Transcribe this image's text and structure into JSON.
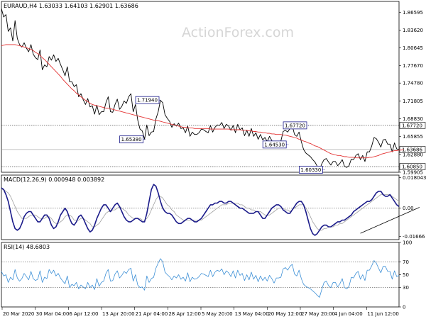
{
  "watermark": "ActionForex.com",
  "colors": {
    "price": "#000000",
    "ma": "#e33131",
    "macd": "#1b1b8a",
    "signal": "#a0a0a0",
    "rsi": "#3c8fd6",
    "grid": "#9a9a9a"
  },
  "chart_data": [
    {
      "type": "line",
      "title": "EURAUD,H4  1.63033 1.64103 1.62901 1.63686",
      "ylim": [
        1.599,
        1.884
      ],
      "y_ticks": [
        "1.86595",
        "1.83620",
        "1.80645",
        "1.77670",
        "1.74780",
        "1.71805",
        "1.68830",
        "1.65855",
        "1.62880",
        "1.59905"
      ],
      "reference_levels": [
        {
          "value": 1.6772,
          "label": "1.67720",
          "style": "dotted"
        },
        {
          "value": 1.6085,
          "label": "1.60850",
          "style": "dotted"
        }
      ],
      "last_price": {
        "value": 1.63686,
        "label": "1.63686"
      },
      "annotations": [
        {
          "label": "1.71940",
          "x": 70,
          "y": 1.7194
        },
        {
          "label": "1.65380",
          "x": 63,
          "y": 1.6538
        },
        {
          "label": "1.67720",
          "x": 135,
          "y": 1.6772
        },
        {
          "label": "1.64530",
          "x": 126,
          "y": 1.6453
        },
        {
          "label": "1.60330",
          "x": 142,
          "y": 1.6033
        }
      ],
      "series": [
        {
          "name": "",
          "values": [
            1.872,
            1.858,
            1.862,
            1.834,
            1.84,
            1.818,
            1.852,
            1.822,
            1.812,
            1.808,
            1.815,
            1.806,
            1.8,
            1.812,
            1.796,
            1.79,
            1.787,
            1.803,
            1.77,
            1.778,
            1.775,
            1.792,
            1.786,
            1.795,
            1.784,
            1.789,
            1.779,
            1.77,
            1.76,
            1.775,
            1.75,
            1.75,
            1.742,
            1.745,
            1.725,
            1.73,
            1.72,
            1.712,
            1.722,
            1.708,
            1.71,
            1.696,
            1.711,
            1.695,
            1.7,
            1.7,
            1.715,
            1.725,
            1.7,
            1.699,
            1.712,
            1.721,
            1.704,
            1.709,
            1.718,
            1.714,
            1.725,
            1.73,
            1.7,
            1.712,
            1.686,
            1.671,
            1.668,
            1.654,
            1.678,
            1.66,
            1.666,
            1.667,
            1.688,
            1.7,
            1.719,
            1.715,
            1.695,
            1.689,
            1.684,
            1.674,
            1.68,
            1.676,
            1.681,
            1.672,
            1.673,
            1.665,
            1.676,
            1.659,
            1.666,
            1.662,
            1.662,
            1.665,
            1.671,
            1.67,
            1.667,
            1.665,
            1.677,
            1.666,
            1.674,
            1.678,
            1.677,
            1.682,
            1.672,
            1.679,
            1.676,
            1.669,
            1.677,
            1.665,
            1.679,
            1.67,
            1.673,
            1.66,
            1.669,
            1.659,
            1.672,
            1.659,
            1.665,
            1.654,
            1.662,
            1.653,
            1.657,
            1.65,
            1.659,
            1.652,
            1.645,
            1.651,
            1.65,
            1.651,
            1.667,
            1.669,
            1.666,
            1.672,
            1.677,
            1.662,
            1.659,
            1.666,
            1.65,
            1.637,
            1.631,
            1.628,
            1.625,
            1.62,
            1.616,
            1.609,
            1.603,
            1.613,
            1.62,
            1.622,
            1.616,
            1.611,
            1.617,
            1.617,
            1.61,
            1.614,
            1.62,
            1.609,
            1.607,
            1.61,
            1.621,
            1.62,
            1.627,
            1.63,
            1.62,
            1.627,
            1.617,
            1.633,
            1.633,
            1.643,
            1.657,
            1.655,
            1.649,
            1.641,
            1.653,
            1.654,
            1.646,
            1.646,
            1.633,
            1.648,
            1.638,
            1.637
          ]
        },
        {
          "name": "",
          "values": [
            1.81,
            1.811,
            1.812,
            1.812,
            1.812,
            1.812,
            1.812,
            1.811,
            1.81,
            1.809,
            1.808,
            1.807,
            1.805,
            1.804,
            1.802,
            1.799,
            1.797,
            1.794,
            1.79,
            1.787,
            1.783,
            1.779,
            1.775,
            1.771,
            1.767,
            1.763,
            1.759,
            1.754,
            1.75,
            1.746,
            1.742,
            1.738,
            1.735,
            1.731,
            1.728,
            1.725,
            1.722,
            1.719,
            1.717,
            1.714,
            1.712,
            1.711,
            1.71,
            1.709,
            1.708,
            1.707,
            1.706,
            1.706,
            1.705,
            1.704,
            1.703,
            1.702,
            1.701,
            1.7,
            1.699,
            1.698,
            1.697,
            1.696,
            1.695,
            1.694,
            1.693,
            1.692,
            1.691,
            1.69,
            1.689,
            1.688,
            1.687,
            1.686,
            1.686,
            1.685,
            1.684,
            1.683,
            1.682,
            1.681,
            1.68,
            1.679,
            1.678,
            1.677,
            1.676,
            1.675,
            1.674,
            1.674,
            1.673,
            1.673,
            1.673,
            1.672,
            1.672,
            1.672,
            1.672,
            1.672,
            1.672,
            1.672,
            1.671,
            1.671,
            1.671,
            1.671,
            1.671,
            1.671,
            1.671,
            1.671,
            1.671,
            1.67,
            1.67,
            1.67,
            1.67,
            1.67,
            1.669,
            1.669,
            1.669,
            1.668,
            1.668,
            1.667,
            1.667,
            1.666,
            1.666,
            1.665,
            1.665,
            1.664,
            1.664,
            1.663,
            1.663,
            1.662,
            1.662,
            1.662,
            1.661,
            1.661,
            1.66,
            1.659,
            1.658,
            1.657,
            1.656,
            1.654,
            1.653,
            1.651,
            1.65,
            1.648,
            1.647,
            1.645,
            1.643,
            1.642,
            1.64,
            1.638,
            1.636,
            1.634,
            1.632,
            1.63,
            1.629,
            1.628,
            1.627,
            1.627,
            1.626,
            1.625,
            1.625,
            1.624,
            1.624,
            1.624,
            1.623,
            1.623,
            1.623,
            1.623,
            1.623,
            1.623,
            1.624,
            1.624,
            1.625,
            1.626,
            1.627,
            1.629,
            1.63,
            1.631,
            1.632,
            1.633,
            1.634,
            1.635,
            1.635,
            1.636,
            1.636,
            1.637
          ]
        }
      ],
      "x_labels": [
        "20 Mar 2020",
        "30 Mar 04:00",
        "6 Apr 12:00",
        "13 Apr 20:00",
        "21 Apr 04:00",
        "28 Apr 12:00",
        "5 May 20:00",
        "13 May 04:00",
        "20 May 12:00",
        "27 May 20:00",
        "4 Jun 04:00",
        "11 Jun 12:00"
      ]
    },
    {
      "type": "line",
      "title": "MACD(12,26,9) 0.000948 0.003892",
      "ylim": [
        -0.0185,
        0.0195
      ],
      "y_ticks": [
        "0.018043",
        "0.00",
        "-0.01666"
      ],
      "reference_levels": [
        {
          "value": 0,
          "label": "",
          "style": "dotted"
        }
      ],
      "series": [
        {
          "name": "",
          "values": [
            0.012,
            0.011,
            0.008,
            0.004,
            -0.002,
            -0.008,
            -0.012,
            -0.013,
            -0.012,
            -0.009,
            -0.005,
            -0.003,
            -0.002,
            -0.002,
            -0.004,
            -0.006,
            -0.008,
            -0.008,
            -0.006,
            -0.004,
            -0.004,
            -0.006,
            -0.01,
            -0.012,
            -0.011,
            -0.008,
            -0.004,
            -0.002,
            0.0,
            -0.002,
            -0.006,
            -0.009,
            -0.01,
            -0.008,
            -0.005,
            -0.004,
            -0.006,
            -0.009,
            -0.012,
            -0.014,
            -0.013,
            -0.01,
            -0.006,
            -0.003,
            0.0,
            0.002,
            0.002,
            0.0,
            -0.002,
            0.0,
            0.002,
            0.003,
            0.001,
            -0.002,
            -0.005,
            -0.007,
            -0.008,
            -0.008,
            -0.007,
            -0.006,
            -0.006,
            -0.007,
            -0.008,
            -0.008,
            -0.003,
            0.004,
            0.011,
            0.014,
            0.013,
            0.009,
            0.004,
            0.0,
            -0.002,
            -0.003,
            -0.003,
            -0.004,
            -0.006,
            -0.008,
            -0.009,
            -0.009,
            -0.008,
            -0.007,
            -0.006,
            -0.006,
            -0.007,
            -0.008,
            -0.008,
            -0.007,
            -0.006,
            -0.004,
            -0.002,
            0.0,
            0.002,
            0.002,
            0.003,
            0.003,
            0.004,
            0.004,
            0.003,
            0.003,
            0.004,
            0.004,
            0.003,
            0.002,
            0.001,
            0.0,
            0.0,
            -0.001,
            -0.002,
            -0.003,
            -0.003,
            -0.003,
            -0.002,
            -0.002,
            -0.004,
            -0.006,
            -0.006,
            -0.004,
            -0.002,
            0.0,
            0.001,
            0.002,
            0.002,
            0.001,
            -0.001,
            -0.002,
            -0.003,
            -0.003,
            -0.001,
            0.001,
            0.003,
            0.004,
            0.004,
            0.002,
            -0.002,
            -0.007,
            -0.012,
            -0.015,
            -0.016,
            -0.015,
            -0.013,
            -0.011,
            -0.01,
            -0.01,
            -0.011,
            -0.011,
            -0.01,
            -0.009,
            -0.008,
            -0.008,
            -0.007,
            -0.007,
            -0.006,
            -0.005,
            -0.004,
            -0.002,
            -0.001,
            0.0,
            0.001,
            0.002,
            0.003,
            0.004,
            0.004,
            0.005,
            0.007,
            0.009,
            0.01,
            0.01,
            0.008,
            0.007,
            0.007,
            0.008,
            0.006,
            0.004,
            0.002,
            0.001
          ]
        },
        {
          "name": "",
          "values": [
            0.011,
            0.011,
            0.01,
            0.009,
            0.007,
            0.004,
            0.001,
            -0.002,
            -0.004,
            -0.006,
            -0.006,
            -0.006,
            -0.005,
            -0.004,
            -0.004,
            -0.004,
            -0.005,
            -0.006,
            -0.006,
            -0.006,
            -0.005,
            -0.005,
            -0.006,
            -0.008,
            -0.009,
            -0.009,
            -0.008,
            -0.007,
            -0.005,
            -0.004,
            -0.004,
            -0.005,
            -0.007,
            -0.007,
            -0.007,
            -0.006,
            -0.006,
            -0.007,
            -0.008,
            -0.009,
            -0.011,
            -0.011,
            -0.01,
            -0.009,
            -0.007,
            -0.005,
            -0.003,
            -0.002,
            -0.002,
            -0.001,
            -0.001,
            0.0,
            0.001,
            0.0,
            -0.001,
            -0.002,
            -0.004,
            -0.005,
            -0.006,
            -0.006,
            -0.006,
            -0.006,
            -0.007,
            -0.007,
            -0.006,
            -0.004,
            -0.001,
            0.002,
            0.005,
            0.007,
            0.007,
            0.006,
            0.004,
            0.002,
            0.001,
            -0.001,
            -0.002,
            -0.004,
            -0.005,
            -0.006,
            -0.007,
            -0.007,
            -0.007,
            -0.007,
            -0.007,
            -0.007,
            -0.007,
            -0.007,
            -0.007,
            -0.006,
            -0.005,
            -0.004,
            -0.003,
            -0.002,
            -0.001,
            0.0,
            0.001,
            0.002,
            0.002,
            0.002,
            0.003,
            0.003,
            0.003,
            0.003,
            0.003,
            0.002,
            0.002,
            0.001,
            0.0,
            0.0,
            -0.001,
            -0.001,
            -0.002,
            -0.002,
            -0.002,
            -0.003,
            -0.004,
            -0.004,
            -0.004,
            -0.003,
            -0.002,
            -0.001,
            0.0,
            0.0,
            0.0,
            -0.001,
            -0.001,
            -0.002,
            -0.001,
            0.0,
            0.001,
            0.002,
            0.002,
            0.002,
            0.0,
            -0.002,
            -0.005,
            -0.008,
            -0.01,
            -0.012,
            -0.013,
            -0.013,
            -0.012,
            -0.012,
            -0.011,
            -0.011,
            -0.011,
            -0.01,
            -0.01,
            -0.009,
            -0.009,
            -0.008,
            -0.007,
            -0.006,
            -0.005,
            -0.004,
            -0.003,
            -0.002,
            -0.001,
            0.0,
            0.001,
            0.002,
            0.003,
            0.004,
            0.005,
            0.006,
            0.007,
            0.008,
            0.008,
            0.008,
            0.008,
            0.008,
            0.007,
            0.006,
            0.005,
            0.004
          ]
        }
      ],
      "trendline": {
        "x": [
          158,
          184
        ],
        "y": [
          -0.0148,
          0.0005
        ]
      }
    },
    {
      "type": "line",
      "title": "RSI(14) 48.6803",
      "ylim": [
        0,
        100
      ],
      "y_ticks": [
        "100",
        "70",
        "50",
        "30",
        "0"
      ],
      "reference_levels": [
        {
          "value": 70,
          "label": "",
          "style": "dotted"
        },
        {
          "value": 30,
          "label": "",
          "style": "dotted"
        }
      ],
      "series": [
        {
          "name": "",
          "values": [
            55,
            48,
            50,
            38,
            46,
            42,
            58,
            45,
            40,
            44,
            52,
            47,
            42,
            55,
            44,
            41,
            43,
            56,
            38,
            46,
            44,
            58,
            52,
            57,
            48,
            52,
            45,
            40,
            36,
            48,
            30,
            35,
            33,
            38,
            28,
            34,
            31,
            28,
            38,
            30,
            34,
            27,
            44,
            32,
            38,
            40,
            52,
            58,
            40,
            41,
            51,
            56,
            45,
            49,
            55,
            52,
            58,
            60,
            40,
            50,
            34,
            30,
            31,
            26,
            48,
            38,
            44,
            46,
            60,
            68,
            75,
            70,
            54,
            50,
            47,
            42,
            48,
            45,
            50,
            43,
            46,
            40,
            53,
            39,
            46,
            43,
            44,
            47,
            52,
            51,
            49,
            47,
            57,
            47,
            54,
            57,
            55,
            59,
            50,
            56,
            53,
            47,
            56,
            45,
            57,
            49,
            52,
            41,
            50,
            42,
            54,
            43,
            49,
            39,
            48,
            41,
            46,
            40,
            49,
            44,
            37,
            45,
            45,
            46,
            59,
            61,
            57,
            63,
            66,
            51,
            48,
            57,
            44,
            35,
            32,
            30,
            28,
            25,
            22,
            18,
            15,
            27,
            38,
            40,
            33,
            30,
            38,
            38,
            31,
            36,
            44,
            30,
            28,
            32,
            46,
            45,
            52,
            55,
            43,
            50,
            41,
            57,
            57,
            64,
            72,
            68,
            60,
            53,
            63,
            63,
            55,
            55,
            43,
            56,
            47,
            49
          ]
        }
      ]
    }
  ]
}
